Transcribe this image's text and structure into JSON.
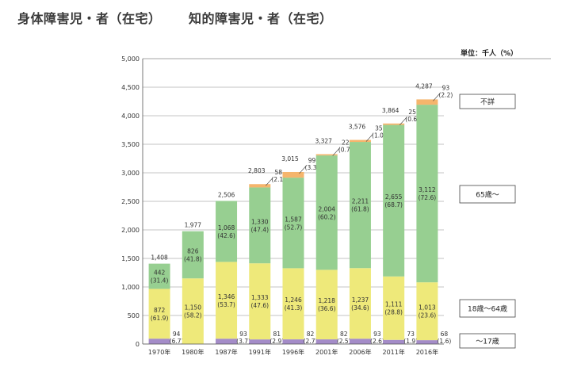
{
  "titles": {
    "left": "身体障害児・者（在宅）",
    "right": "知的障害児・者（在宅）"
  },
  "chart_data": {
    "type": "bar",
    "stacked": true,
    "unit_label": "単位：千人（%）",
    "ylim": [
      0,
      5000
    ],
    "yticks": [
      "0",
      "500",
      "1,000",
      "1,500",
      "2,000",
      "2,500",
      "3,000",
      "3,500",
      "4,000",
      "4,500",
      "5,000"
    ],
    "categories": [
      "1970年",
      "1980年",
      "1987年",
      "1991年",
      "1996年",
      "2001年",
      "2006年",
      "2011年",
      "2016年"
    ],
    "totals": [
      1408,
      1977,
      2506,
      2803,
      3015,
      3327,
      3576,
      3864,
      4287
    ],
    "total_labels": [
      "1,408",
      "1,977",
      "2,506",
      "2,803",
      "3,015",
      "3,327",
      "3,576",
      "3,864",
      "4,287"
    ],
    "series": [
      {
        "name": "～17歳",
        "color": "#a48cc8",
        "values": [
          94,
          0,
          93,
          81,
          82,
          82,
          93,
          73,
          68
        ],
        "labels": [
          "94",
          "",
          "93",
          "81",
          "82",
          "82",
          "93",
          "73",
          "68"
        ],
        "pct": [
          "(6.7)",
          "",
          "(3.7)",
          "(2.9)",
          "(2.7)",
          "(2.5)",
          "(2.6)",
          "(1.9)",
          "(1.6)"
        ]
      },
      {
        "name": "18歳～64歳",
        "color": "#eee97a",
        "values": [
          872,
          1150,
          1346,
          1333,
          1246,
          1218,
          1237,
          1111,
          1013
        ],
        "labels": [
          "872",
          "1,150",
          "1,346",
          "1,333",
          "1,246",
          "1,218",
          "1,237",
          "1,111",
          "1,013"
        ],
        "pct": [
          "(61.9)",
          "(58.2)",
          "(53.7)",
          "(47.6)",
          "(41.3)",
          "(36.6)",
          "(34.6)",
          "(28.8)",
          "(23.6)"
        ]
      },
      {
        "name": "65歳～",
        "color": "#97cf91",
        "values": [
          442,
          826,
          1068,
          1330,
          1587,
          2004,
          2211,
          2655,
          3112
        ],
        "labels": [
          "442",
          "826",
          "1,068",
          "1,330",
          "1,587",
          "2,004",
          "2,211",
          "2,655",
          "3,112"
        ],
        "pct": [
          "(31.4)",
          "(41.8)",
          "(42.6)",
          "(47.4)",
          "(52.7)",
          "(60.2)",
          "(61.8)",
          "(68.7)",
          "(72.6)"
        ]
      },
      {
        "name": "不詳",
        "color": "#f5b56c",
        "values": [
          0,
          0,
          0,
          58,
          99,
          22,
          35,
          25,
          93
        ],
        "labels": [
          "",
          "",
          "",
          "58",
          "99",
          "22",
          "35",
          "25",
          "93"
        ],
        "pct": [
          "",
          "",
          "",
          "(2.1)",
          "(3.3)",
          "(0.7)",
          "(1.0)",
          "(0.6)",
          "(2.2)"
        ]
      }
    ]
  }
}
